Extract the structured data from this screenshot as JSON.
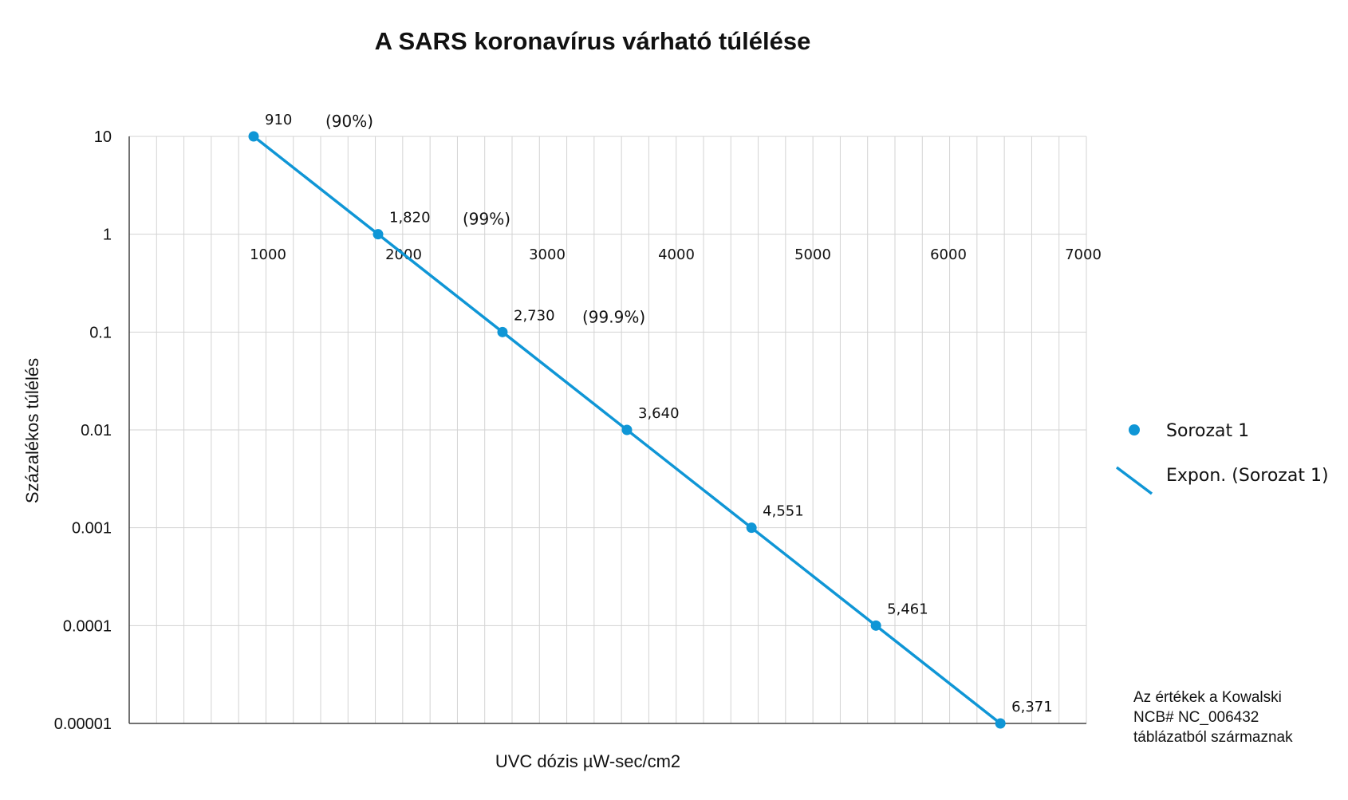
{
  "chart_data": {
    "type": "line",
    "title": "A SARS koronavírus várható túlélése",
    "xlabel": "UVC dózis µW-sec/cm2",
    "ylabel": "Százalékos túlélés",
    "y_scale": "log",
    "ylim": [
      1e-05,
      10
    ],
    "xlim": [
      0,
      7000
    ],
    "yticks": [
      "10",
      "1",
      "0.1",
      "0.01",
      "0.001",
      "0.0001",
      "0.00001"
    ],
    "xticks": [
      "1000",
      "2000",
      "3000",
      "4000",
      "5000",
      "6000",
      "7000"
    ],
    "grid": true,
    "legend_position": "right",
    "series": [
      {
        "name": "Sorozat 1",
        "kind": "scatter",
        "x": [
          910,
          1820,
          2730,
          3640,
          4551,
          5461,
          6371
        ],
        "y": [
          10,
          1,
          0.1,
          0.01,
          0.001,
          0.0001,
          1e-05
        ],
        "labels": [
          "910",
          "1,820",
          "2,730",
          "3,640",
          "4,551",
          "5,461",
          "6,371"
        ]
      },
      {
        "name": "Expon. (Sorozat 1)",
        "kind": "trendline",
        "x": [
          910,
          6371
        ],
        "y": [
          10,
          1e-05
        ]
      }
    ],
    "annotations": [
      "(90%)",
      "(99%)",
      "(99.9%)"
    ],
    "note": [
      "Az értékek a Kowalski",
      "NCB# NC_006432",
      "táblázatból származnak"
    ],
    "colors": {
      "series": "#0f96d6",
      "grid": "#d3d3d3",
      "axis": "#444444"
    }
  }
}
